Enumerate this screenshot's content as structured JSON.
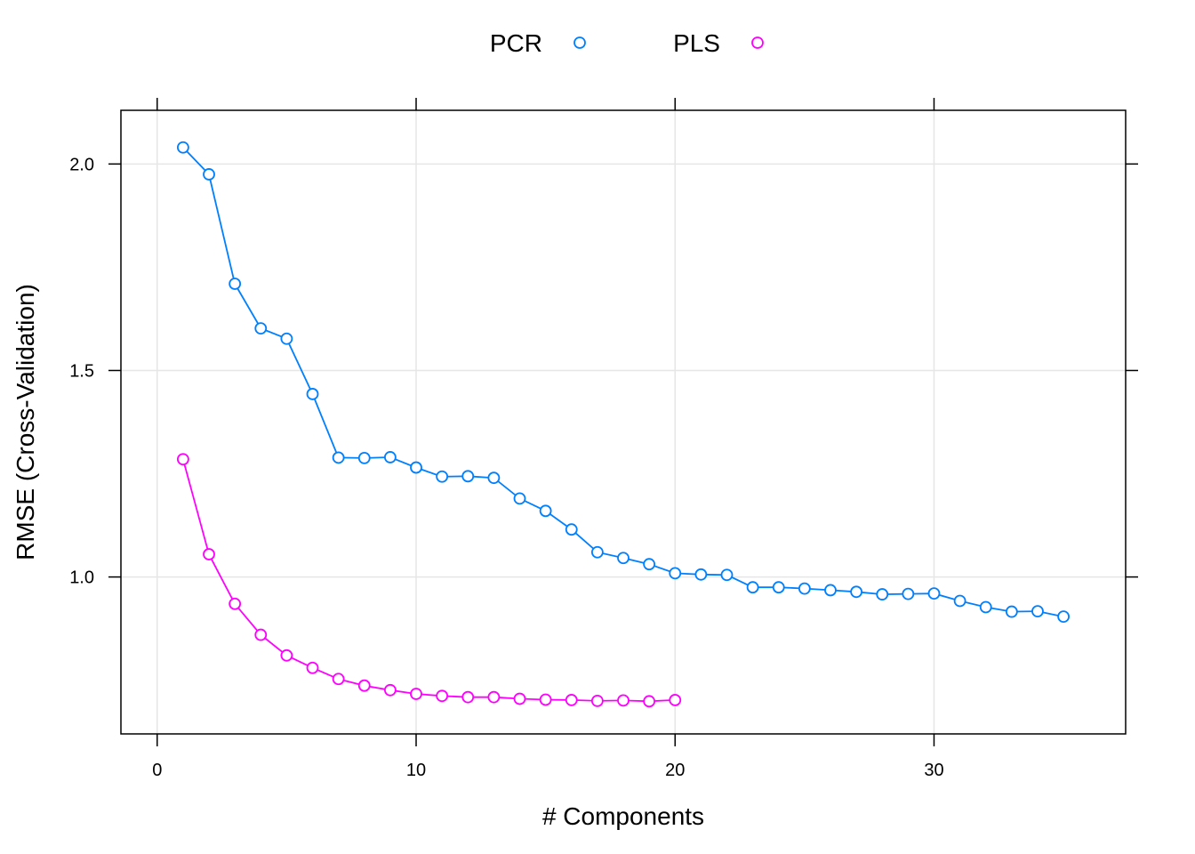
{
  "chart_data": {
    "type": "line",
    "title": "",
    "xlabel": "# Components",
    "ylabel": "RMSE (Cross-Validation)",
    "xlim": [
      -1.4,
      37.4
    ],
    "ylim": [
      0.62,
      2.13
    ],
    "xticks": [
      0,
      10,
      20,
      30
    ],
    "yticks": [
      1.0,
      1.5,
      2.0
    ],
    "ytick_labels": [
      "1.0",
      "1.5",
      "2.0"
    ],
    "grid": true,
    "legend_position": "top",
    "series": [
      {
        "name": "PCR",
        "color": "#0080ff",
        "x": [
          1,
          2,
          3,
          4,
          5,
          6,
          7,
          8,
          9,
          10,
          11,
          12,
          13,
          14,
          15,
          16,
          17,
          18,
          19,
          20,
          21,
          22,
          23,
          24,
          25,
          26,
          27,
          28,
          29,
          30,
          31,
          32,
          33,
          34,
          35
        ],
        "y": [
          2.04,
          1.975,
          1.71,
          1.602,
          1.577,
          1.443,
          1.289,
          1.288,
          1.29,
          1.265,
          1.243,
          1.244,
          1.24,
          1.19,
          1.16,
          1.115,
          1.06,
          1.046,
          1.031,
          1.009,
          1.006,
          1.005,
          0.975,
          0.975,
          0.972,
          0.968,
          0.964,
          0.958,
          0.959,
          0.96,
          0.942,
          0.927,
          0.916,
          0.917,
          0.904
        ]
      },
      {
        "name": "PLS",
        "color": "#ff00ff",
        "x": [
          1,
          2,
          3,
          4,
          5,
          6,
          7,
          8,
          9,
          10,
          11,
          12,
          13,
          14,
          15,
          16,
          17,
          18,
          19,
          20
        ],
        "y": [
          1.285,
          1.055,
          0.935,
          0.86,
          0.81,
          0.78,
          0.753,
          0.737,
          0.726,
          0.717,
          0.712,
          0.709,
          0.709,
          0.705,
          0.703,
          0.702,
          0.7,
          0.701,
          0.699,
          0.702
        ]
      }
    ]
  }
}
